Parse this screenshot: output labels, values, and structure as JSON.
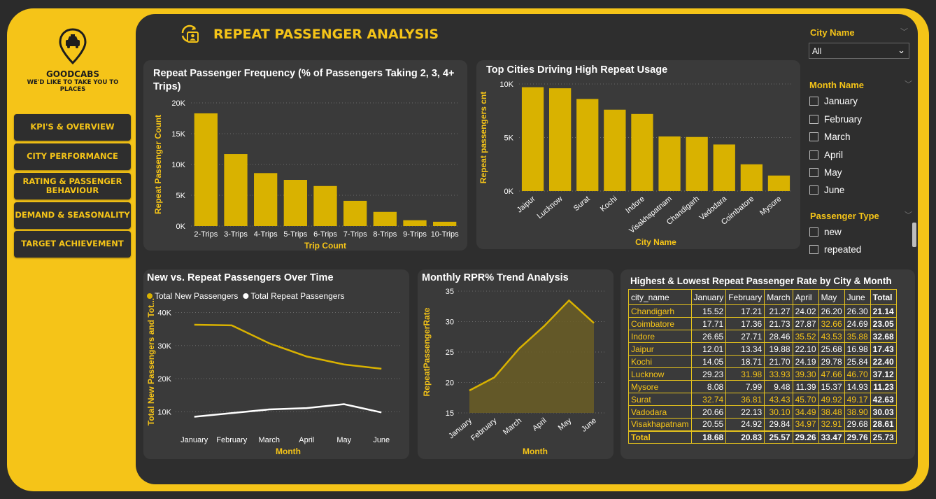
{
  "brand": {
    "name": "GOODCABS",
    "tagline": "WE'D LIKE TO TAKE YOU TO PLACES"
  },
  "nav": [
    "KPI'S & OVERVIEW",
    "CITY PERFORMANCE",
    "RATING & PASSENGER BEHAVIOUR",
    "DEMAND & SEASONALITY",
    "TARGET ACHIEVEMENT"
  ],
  "page_title": "REPEAT PASSENGER ANALYSIS",
  "colors": {
    "accent": "#f5c418",
    "bar": "#d9b200",
    "panel": "#3a3a3a",
    "background": "#2e2e2e"
  },
  "slicers": {
    "city": {
      "title": "City Name",
      "value": "All"
    },
    "month": {
      "title": "Month Name",
      "options": [
        "January",
        "February",
        "March",
        "April",
        "May",
        "June"
      ]
    },
    "passenger_type": {
      "title": "Passenger Type",
      "options": [
        "new",
        "repeated"
      ]
    }
  },
  "chart_data": [
    {
      "type": "bar",
      "title": "Repeat Passenger Frequency (% of Passengers Taking 2, 3, 4+ Trips)",
      "xlabel": "Trip Count",
      "ylabel": "Repeat Passenger Count",
      "categories": [
        "2-Trips",
        "3-Trips",
        "4-Trips",
        "5-Trips",
        "6-Trips",
        "7-Trips",
        "8-Trips",
        "9-Trips",
        "10-Trips"
      ],
      "values": [
        18300,
        11700,
        8600,
        7500,
        6500,
        4100,
        2300,
        950,
        700
      ],
      "yticks": [
        "0K",
        "5K",
        "10K",
        "15K",
        "20K"
      ],
      "ylim": [
        0,
        20000
      ],
      "grid": true
    },
    {
      "type": "bar",
      "title": "Top Cities Driving High Repeat Usage",
      "xlabel": "City Name",
      "ylabel": "Repeat passengers cnt",
      "categories": [
        "Jaipur",
        "Lucknow",
        "Surat",
        "Kochi",
        "Indore",
        "Visakhapatnam",
        "Chandigarh",
        "Vadodara",
        "Coimbatore",
        "Mysore"
      ],
      "values": [
        9700,
        9600,
        8600,
        7600,
        7200,
        5100,
        5050,
        4350,
        2500,
        1450
      ],
      "yticks": [
        "0K",
        "5K",
        "10K"
      ],
      "ylim": [
        0,
        10000
      ],
      "grid": true
    },
    {
      "type": "line",
      "title": "New vs. Repeat Passengers Over Time",
      "xlabel": "Month",
      "ylabel": "Total New Passengers and Tot...",
      "categories": [
        "January",
        "February",
        "March",
        "April",
        "May",
        "June"
      ],
      "series": [
        {
          "name": "Total New Passengers",
          "color": "#d9b200",
          "values": [
            36300,
            36100,
            30700,
            26700,
            24300,
            23000
          ]
        },
        {
          "name": "Total Repeat Passengers",
          "color": "#ffffff",
          "values": [
            8500,
            9600,
            10700,
            11100,
            12300,
            9800
          ]
        }
      ],
      "yticks": [
        "10K",
        "20K",
        "30K",
        "40K"
      ],
      "ylim": [
        5000,
        42000
      ],
      "legend": "top-left",
      "grid": true
    },
    {
      "type": "area",
      "title": "Monthly RPR% Trend Analysis",
      "xlabel": "Month",
      "ylabel": "RepeatPassengerRate",
      "categories": [
        "January",
        "February",
        "March",
        "April",
        "May",
        "June"
      ],
      "values": [
        18.68,
        20.83,
        25.57,
        29.26,
        33.47,
        29.76
      ],
      "yticks": [
        "15",
        "20",
        "25",
        "30",
        "35"
      ],
      "ylim": [
        15,
        35
      ],
      "grid": true
    }
  ],
  "table": {
    "title": "Highest & Lowest Repeat Passenger Rate by City & Month",
    "columns": [
      "city_name",
      "January",
      "February",
      "March",
      "April",
      "May",
      "June",
      "Total"
    ],
    "rows": [
      [
        "Chandigarh",
        "15.52",
        "17.21",
        "21.27",
        "24.02",
        "26.20",
        "26.30",
        "21.14"
      ],
      [
        "Coimbatore",
        "17.71",
        "17.36",
        "21.73",
        "27.87",
        "32.66",
        "24.69",
        "23.05"
      ],
      [
        "Indore",
        "26.65",
        "27.71",
        "28.46",
        "35.52",
        "43.53",
        "35.88",
        "32.68"
      ],
      [
        "Jaipur",
        "12.01",
        "13.34",
        "19.88",
        "22.10",
        "25.68",
        "16.98",
        "17.43"
      ],
      [
        "Kochi",
        "14.05",
        "18.71",
        "21.70",
        "24.19",
        "29.78",
        "25.84",
        "22.40"
      ],
      [
        "Lucknow",
        "29.23",
        "31.98",
        "33.93",
        "39.30",
        "47.66",
        "46.70",
        "37.12"
      ],
      [
        "Mysore",
        "8.08",
        "7.99",
        "9.48",
        "11.39",
        "15.37",
        "14.93",
        "11.23"
      ],
      [
        "Surat",
        "32.74",
        "36.81",
        "43.43",
        "45.70",
        "49.92",
        "49.17",
        "42.63"
      ],
      [
        "Vadodara",
        "20.66",
        "22.13",
        "30.10",
        "34.49",
        "38.48",
        "38.90",
        "30.03"
      ],
      [
        "Visakhapatnam",
        "20.55",
        "24.92",
        "29.84",
        "34.97",
        "32.91",
        "29.68",
        "28.61"
      ]
    ],
    "total_row": [
      "Total",
      "18.68",
      "20.83",
      "25.57",
      "29.26",
      "33.47",
      "29.76",
      "25.73"
    ],
    "highlight_color": "#f5c418",
    "highlight_threshold": 30
  }
}
